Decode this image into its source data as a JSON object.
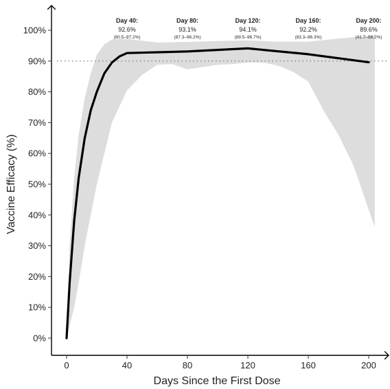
{
  "chart_data": {
    "type": "line",
    "xlabel": "Days Since the First Dose",
    "ylabel": "Vaccine Efficacy (%)",
    "xlim": [
      -5,
      213
    ],
    "ylim": [
      -5,
      107
    ],
    "x_ticks": [
      0,
      40,
      80,
      120,
      160,
      200
    ],
    "x_tick_labels": [
      "0",
      "40",
      "80",
      "120",
      "160",
      "200"
    ],
    "y_ticks": [
      0,
      10,
      20,
      30,
      40,
      50,
      60,
      70,
      80,
      90,
      100
    ],
    "y_tick_labels": [
      "0%",
      "10%",
      "20%",
      "30%",
      "40%",
      "50%",
      "60%",
      "70%",
      "80%",
      "90%",
      "100%"
    ],
    "reference_line": {
      "y": 90,
      "style": "dotted"
    },
    "colors": {
      "line": "#000000",
      "band": "#dddddd",
      "reference": "#888888"
    },
    "series": [
      {
        "x": [
          0,
          2,
          5,
          8,
          12,
          16,
          20,
          25,
          30,
          35,
          40,
          80,
          120,
          160,
          200
        ],
        "y": [
          0,
          18,
          38,
          52,
          65,
          74,
          80,
          86,
          89.5,
          91.5,
          92.6,
          93.1,
          94.1,
          92.2,
          89.6
        ]
      }
    ],
    "band": {
      "upper": [
        [
          0,
          0
        ],
        [
          2,
          30
        ],
        [
          5,
          52
        ],
        [
          8,
          66
        ],
        [
          12,
          78
        ],
        [
          16,
          86
        ],
        [
          20,
          92
        ],
        [
          25,
          95.5
        ],
        [
          30,
          97
        ],
        [
          40,
          97.2
        ],
        [
          60,
          96
        ],
        [
          80,
          96.2
        ],
        [
          100,
          96.5
        ],
        [
          120,
          96.7
        ],
        [
          140,
          96.3
        ],
        [
          160,
          96.3
        ],
        [
          180,
          97.3
        ],
        [
          200,
          98.2
        ],
        [
          204,
          98.4
        ]
      ],
      "lower": [
        [
          204,
          36
        ],
        [
          200,
          41.7
        ],
        [
          190,
          56
        ],
        [
          180,
          66
        ],
        [
          170,
          74
        ],
        [
          160,
          83.3
        ],
        [
          150,
          86.5
        ],
        [
          140,
          88.5
        ],
        [
          130,
          89.5
        ],
        [
          120,
          89.5
        ],
        [
          110,
          89
        ],
        [
          100,
          88.8
        ],
        [
          90,
          88
        ],
        [
          80,
          87.3
        ],
        [
          70,
          89
        ],
        [
          60,
          88.8
        ],
        [
          50,
          85.5
        ],
        [
          40,
          80.5
        ],
        [
          30,
          70
        ],
        [
          20,
          50
        ],
        [
          12,
          30
        ],
        [
          8,
          18
        ],
        [
          5,
          10
        ],
        [
          2,
          4
        ],
        [
          0,
          0
        ]
      ]
    },
    "annotations": [
      {
        "x": 40,
        "title": "Day 40:",
        "value": "92.6%",
        "ci": "(80.5–97.2%)"
      },
      {
        "x": 80,
        "title": "Day 80:",
        "value": "93.1%",
        "ci": "(87.3–96.2%)"
      },
      {
        "x": 120,
        "title": "Day 120:",
        "value": "94.1%",
        "ci": "(89.5–96.7%)"
      },
      {
        "x": 160,
        "title": "Day 160:",
        "value": "92.2%",
        "ci": "(83.3–96.3%)"
      },
      {
        "x": 200,
        "title": "Day 200:",
        "value": "89.6%",
        "ci": "(41.7–98.2%)"
      }
    ]
  }
}
